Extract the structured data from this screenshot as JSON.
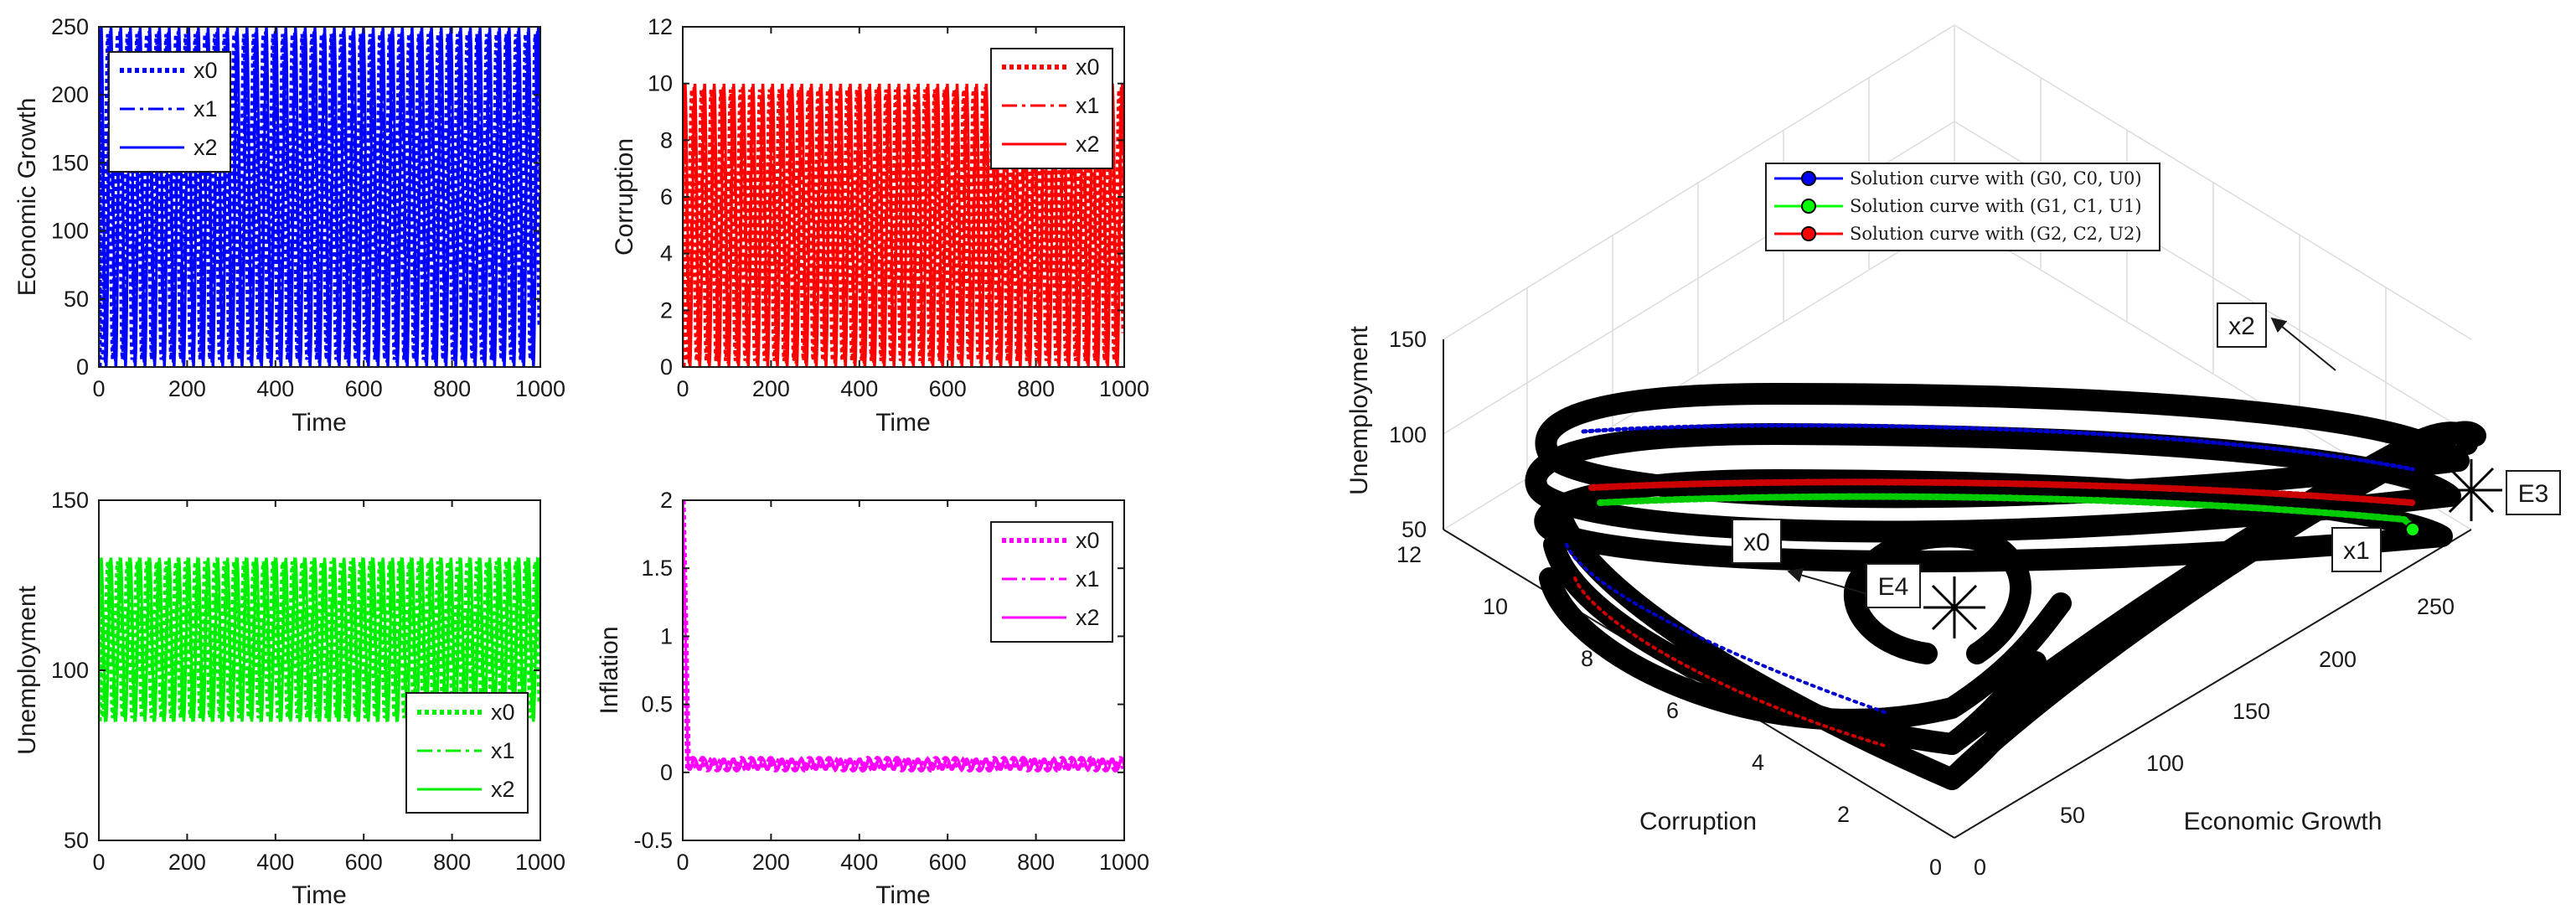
{
  "chart_data": [
    {
      "type": "line",
      "title": "",
      "xlabel": "Time",
      "ylabel": "Economic Growth",
      "xlim": [
        0,
        1000
      ],
      "ylim": [
        0,
        250
      ],
      "x_ticks": [
        "0",
        "200",
        "400",
        "600",
        "800",
        "1000"
      ],
      "y_ticks": [
        "0",
        "50",
        "100",
        "150",
        "200",
        "250"
      ],
      "color": "#0000ff",
      "oscillation": {
        "min": 0,
        "max": 250,
        "period": 22
      },
      "legend": [
        "x0",
        "x1",
        "x2"
      ],
      "legend_position": "top-left"
    },
    {
      "type": "line",
      "title": "",
      "xlabel": "Time",
      "ylabel": "Corruption",
      "xlim": [
        0,
        1000
      ],
      "ylim": [
        0,
        12
      ],
      "x_ticks": [
        "0",
        "200",
        "400",
        "600",
        "800",
        "1000"
      ],
      "y_ticks": [
        "0",
        "2",
        "4",
        "6",
        "8",
        "10",
        "12"
      ],
      "color": "#ff0000",
      "oscillation": {
        "min": 0,
        "max": 10,
        "period": 22
      },
      "legend": [
        "x0",
        "x1",
        "x2"
      ],
      "legend_position": "top-right"
    },
    {
      "type": "line",
      "title": "",
      "xlabel": "Time",
      "ylabel": "Unemployment",
      "xlim": [
        0,
        1000
      ],
      "ylim": [
        50,
        150
      ],
      "x_ticks": [
        "0",
        "200",
        "400",
        "600",
        "800",
        "1000"
      ],
      "y_ticks": [
        "50",
        "100",
        "150"
      ],
      "color": "#00ee00",
      "oscillation": {
        "min": 85,
        "max": 133,
        "period": 22
      },
      "legend": [
        "x0",
        "x1",
        "x2"
      ],
      "legend_position": "bottom-right"
    },
    {
      "type": "line",
      "title": "",
      "xlabel": "Time",
      "ylabel": "Inflation",
      "xlim": [
        0,
        1000
      ],
      "ylim": [
        -0.5,
        2
      ],
      "x_ticks": [
        "0",
        "200",
        "400",
        "600",
        "800",
        "1000"
      ],
      "y_ticks": [
        "-0.5",
        "0",
        "0.5",
        "1",
        "1.5",
        "2"
      ],
      "color": "#ff00ff",
      "initial_value": 2,
      "oscillation": {
        "min": 0.02,
        "max": 0.1,
        "period": 22
      },
      "legend": [
        "x0",
        "x1",
        "x2"
      ],
      "legend_position": "top-right"
    },
    {
      "type": "line3d",
      "title": "",
      "xlabel": "Economic Growth",
      "ylabel": "Corruption",
      "zlabel": "Unemployment",
      "xlim": [
        0,
        250
      ],
      "ylim": [
        0,
        12
      ],
      "zlim": [
        50,
        150
      ],
      "x_ticks": [
        "0",
        "50",
        "100",
        "150",
        "200",
        "250"
      ],
      "y_ticks": [
        "0",
        "2",
        "4",
        "6",
        "8",
        "10",
        "12"
      ],
      "z_ticks": [
        "50",
        "100",
        "150"
      ],
      "series": [
        {
          "name": "Solution curve with (G0, C0, U0)",
          "color": "#0000ff",
          "marker": "circle"
        },
        {
          "name": "Solution curve with (G1, C1, U1)",
          "color": "#00ff00",
          "marker": "circle"
        },
        {
          "name": "Solution curve with (G2, C2, U2)",
          "color": "#ff0000",
          "marker": "circle"
        }
      ],
      "legend_position": "top",
      "annotations": [
        "x2",
        "x1",
        "x0",
        "E4",
        "E3"
      ]
    }
  ]
}
